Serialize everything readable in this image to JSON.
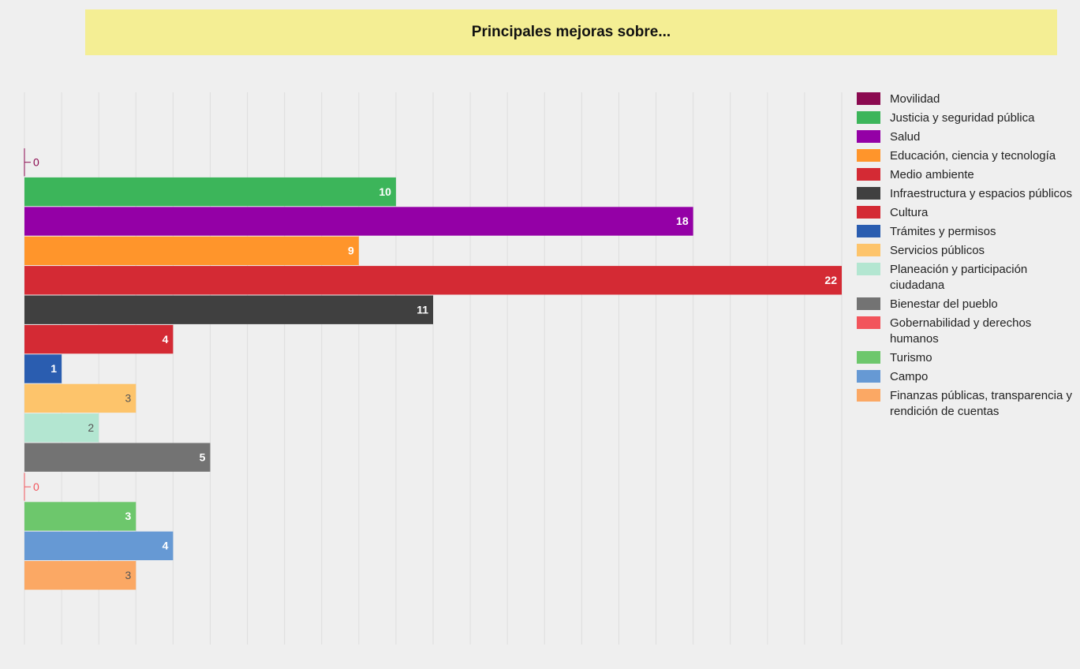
{
  "chart_data": {
    "type": "bar",
    "orientation": "horizontal",
    "title": "Principales mejoras sobre...",
    "xlim": [
      0,
      22
    ],
    "xticks": [
      0,
      1,
      2,
      3,
      4,
      5,
      6,
      7,
      8,
      9,
      10,
      11,
      12,
      13,
      14,
      15,
      16,
      17,
      18,
      19,
      20,
      21,
      22
    ],
    "grid": true,
    "legend": "right",
    "series": [
      {
        "name": "Movilidad",
        "color": "#8b0a50",
        "values": [
          0
        ]
      },
      {
        "name": "Justicia y seguridad pública",
        "color": "#3cb55a",
        "values": [
          10
        ]
      },
      {
        "name": "Salud",
        "color": "#9400a6",
        "values": [
          18
        ]
      },
      {
        "name": "Educación, ciencia y tecnología",
        "color": "#ff952b",
        "values": [
          9
        ]
      },
      {
        "name": "Medio ambiente",
        "color": "#d42a34",
        "values": [
          22
        ]
      },
      {
        "name": "Infraestructura y espacios públicos",
        "color": "#404040",
        "values": [
          11
        ]
      },
      {
        "name": "Cultura",
        "color": "#d42a34",
        "values": [
          4
        ]
      },
      {
        "name": "Trámites y permisos",
        "color": "#2a5db0",
        "values": [
          1
        ]
      },
      {
        "name": "Servicios públicos",
        "color": "#fdc46b",
        "values": [
          3
        ]
      },
      {
        "name": "Planeación y participación ciudadana",
        "color": "#b3e6d1",
        "values": [
          2
        ]
      },
      {
        "name": "Bienestar del pueblo",
        "color": "#737373",
        "values": [
          5
        ]
      },
      {
        "name": "Gobernabilidad y derechos humanos",
        "color": "#f2545b",
        "values": [
          0
        ]
      },
      {
        "name": "Turismo",
        "color": "#6dc76c",
        "values": [
          3
        ]
      },
      {
        "name": "Campo",
        "color": "#6699d4",
        "values": [
          4
        ]
      },
      {
        "name": "Finanzas públicas, transparencia y rendición de cuentas",
        "color": "#fba864",
        "values": [
          3
        ]
      }
    ]
  }
}
